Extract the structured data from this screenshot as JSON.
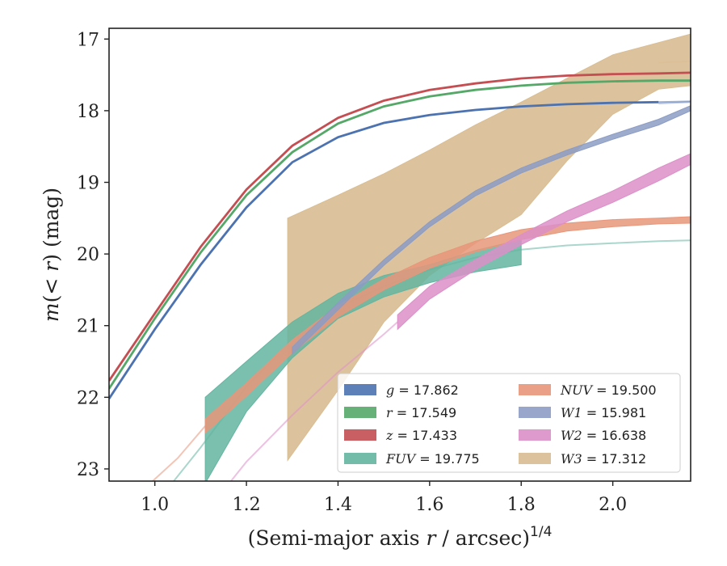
{
  "chart_data": {
    "type": "line",
    "title": "",
    "xlabel": "(Semi-major axis r / arcsec)^{1/4}",
    "xlabel_parts": {
      "pre": "(Semi-major axis ",
      "var": "r",
      "post": " / arcsec)",
      "sup": "1/4"
    },
    "ylabel": "m(< r) (mag)",
    "ylabel_parts": {
      "m": "m",
      "lt": "(< ",
      "r": "r",
      "close": ")",
      "unit": " (mag)"
    },
    "xlim": [
      0.9,
      2.17
    ],
    "ylim": [
      23.17,
      16.85
    ],
    "y_inverted": true,
    "grid": false,
    "legend_placement": "lower-right",
    "x_ticks": [
      1.0,
      1.2,
      1.4,
      1.6,
      1.8,
      2.0
    ],
    "x_tick_labels": [
      "1.0",
      "1.2",
      "1.4",
      "1.6",
      "1.8",
      "2.0"
    ],
    "y_ticks": [
      17,
      18,
      19,
      20,
      21,
      22,
      23
    ],
    "y_tick_labels": [
      "17",
      "18",
      "19",
      "20",
      "21",
      "22",
      "23"
    ],
    "series": [
      {
        "name": "g",
        "legend_value": "17.862",
        "color": "#4c72b0",
        "kind": "line",
        "x": [
          0.9,
          1.0,
          1.1,
          1.2,
          1.3,
          1.4,
          1.5,
          1.6,
          1.7,
          1.8,
          1.9,
          2.0,
          2.1
        ],
        "y": [
          22.02,
          21.05,
          20.15,
          19.35,
          18.72,
          18.37,
          18.17,
          18.06,
          17.99,
          17.94,
          17.91,
          17.89,
          17.88
        ],
        "ext_x": [
          2.1,
          2.17
        ],
        "ext_y": [
          17.88,
          17.87
        ]
      },
      {
        "name": "r",
        "legend_value": "17.549",
        "color": "#55a868",
        "kind": "line",
        "x": [
          0.9,
          1.0,
          1.1,
          1.2,
          1.3,
          1.4,
          1.5,
          1.6,
          1.7,
          1.8,
          1.9,
          2.0,
          2.1,
          2.17
        ],
        "y": [
          21.88,
          20.9,
          19.98,
          19.18,
          18.58,
          18.18,
          17.94,
          17.8,
          17.71,
          17.65,
          17.61,
          17.59,
          17.58,
          17.58
        ]
      },
      {
        "name": "z",
        "legend_value": "17.433",
        "color": "#c44e52",
        "kind": "line",
        "x": [
          0.9,
          1.0,
          1.1,
          1.2,
          1.3,
          1.4,
          1.5,
          1.6,
          1.7,
          1.8,
          1.9,
          2.0,
          2.1,
          2.17
        ],
        "y": [
          21.77,
          20.83,
          19.9,
          19.1,
          18.49,
          18.1,
          17.86,
          17.71,
          17.62,
          17.55,
          17.51,
          17.49,
          17.48,
          17.47
        ]
      },
      {
        "name": "FUV",
        "legend_value": "19.775",
        "color": "#64b5a0",
        "kind": "band",
        "x": [
          1.11,
          1.2,
          1.3,
          1.4,
          1.5,
          1.6,
          1.7,
          1.8
        ],
        "y_low": [
          22.0,
          21.5,
          20.95,
          20.55,
          20.3,
          20.15,
          19.95,
          19.8
        ],
        "y_high": [
          23.2,
          22.2,
          21.45,
          20.9,
          20.6,
          20.4,
          20.25,
          20.15
        ],
        "ext_x": [
          1.0,
          1.1,
          1.2,
          1.3,
          1.4,
          1.5,
          1.6,
          1.7,
          1.8,
          1.9,
          2.0,
          2.1,
          2.17
        ],
        "ext_y": [
          23.5,
          22.7,
          21.85,
          21.2,
          20.75,
          20.45,
          20.22,
          20.05,
          19.94,
          19.88,
          19.85,
          19.82,
          19.81
        ]
      },
      {
        "name": "NUV",
        "legend_value": "19.500",
        "color": "#e8967a",
        "kind": "band",
        "x": [
          1.11,
          1.2,
          1.3,
          1.4,
          1.5,
          1.6,
          1.7,
          1.8,
          1.9,
          2.0,
          2.1,
          2.17
        ],
        "y_low": [
          22.3,
          21.8,
          21.2,
          20.72,
          20.35,
          20.05,
          19.82,
          19.66,
          19.57,
          19.52,
          19.5,
          19.48
        ],
        "y_high": [
          22.5,
          21.98,
          21.38,
          20.88,
          20.5,
          20.2,
          19.97,
          19.8,
          19.68,
          19.62,
          19.58,
          19.57
        ],
        "ext_x": [
          0.99,
          1.05,
          1.11
        ],
        "ext_y": [
          23.2,
          22.85,
          22.4
        ]
      },
      {
        "name": "W1",
        "legend_value": "15.981",
        "color": "#8c9cc4",
        "kind": "band",
        "x": [
          1.3,
          1.4,
          1.5,
          1.6,
          1.7,
          1.8,
          1.9,
          2.0,
          2.1,
          2.17
        ],
        "y_low": [
          21.3,
          20.68,
          20.08,
          19.55,
          19.12,
          18.8,
          18.55,
          18.33,
          18.12,
          17.93
        ],
        "y_high": [
          21.4,
          20.78,
          20.16,
          19.62,
          19.19,
          18.87,
          18.62,
          18.4,
          18.2,
          18.0
        ],
        "ext_x": [
          2.1,
          2.17
        ],
        "ext_y": [
          17.9,
          17.88
        ]
      },
      {
        "name": "W2",
        "legend_value": "16.638",
        "color": "#dc8fc8",
        "kind": "band",
        "x": [
          1.53,
          1.6,
          1.7,
          1.8,
          1.9,
          2.0,
          2.1,
          2.17
        ],
        "y_low": [
          20.85,
          20.45,
          20.08,
          19.73,
          19.4,
          19.12,
          18.8,
          18.6
        ],
        "y_high": [
          21.05,
          20.63,
          20.22,
          19.87,
          19.55,
          19.28,
          18.98,
          18.75
        ],
        "ext_x": [
          1.15,
          1.2,
          1.3,
          1.4,
          1.5,
          1.53
        ],
        "ext_y": [
          23.3,
          22.9,
          22.25,
          21.65,
          21.12,
          20.95
        ]
      },
      {
        "name": "W3",
        "legend_value": "17.312",
        "color": "#d9bd92",
        "kind": "band",
        "x": [
          1.29,
          1.4,
          1.5,
          1.6,
          1.7,
          1.8,
          1.9,
          2.0,
          2.1,
          2.17
        ],
        "y_low": [
          19.5,
          19.18,
          18.88,
          18.55,
          18.2,
          17.88,
          17.55,
          17.22,
          17.05,
          16.93
        ],
        "y_high": [
          22.88,
          21.9,
          20.95,
          20.3,
          19.85,
          19.45,
          18.7,
          18.05,
          17.7,
          17.65
        ],
        "ext_x": [
          2.1,
          2.17
        ],
        "ext_y": [
          17.33,
          17.31
        ]
      }
    ]
  }
}
